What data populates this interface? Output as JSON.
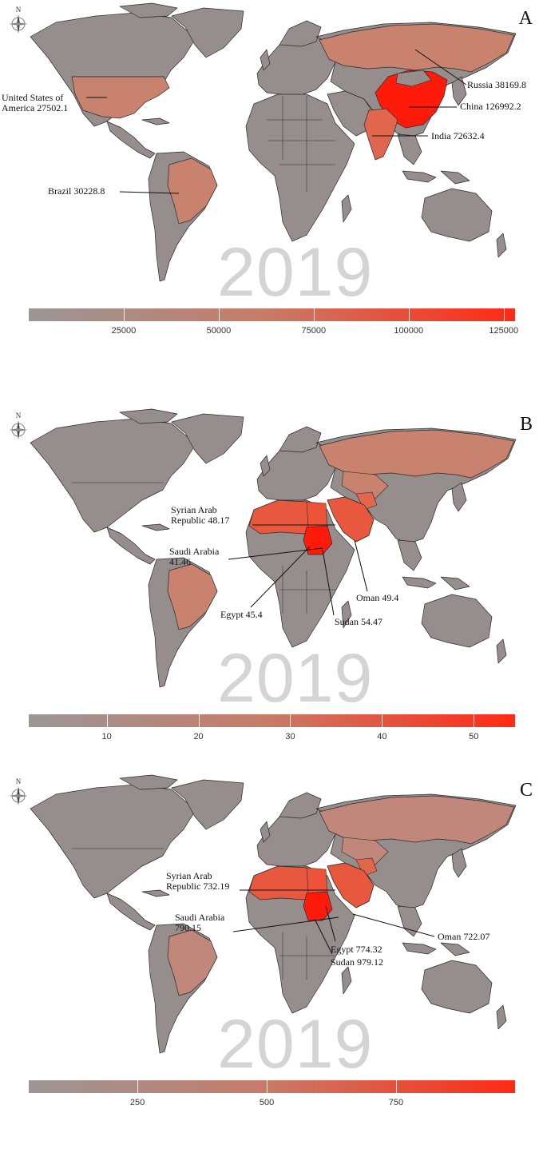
{
  "year_watermark": "2019",
  "panels": [
    {
      "letter": "A",
      "legend_ticks": [
        {
          "label": "25000",
          "value": 25000
        },
        {
          "label": "50000",
          "value": 50000
        },
        {
          "label": "75000",
          "value": 75000
        },
        {
          "label": "100000",
          "value": 100000
        },
        {
          "label": "125000",
          "value": 125000
        }
      ],
      "legend_range": [
        0,
        128000
      ],
      "annotations": [
        {
          "line1": "United States of",
          "line2": "America 27502.1",
          "value": 27502.1
        },
        {
          "line1": "Brazil 30228.8",
          "line2": "",
          "value": 30228.8
        },
        {
          "line1": "Russia 38169.8",
          "line2": "",
          "value": 38169.8
        },
        {
          "line1": "China 126992.2",
          "line2": "",
          "value": 126992.2
        },
        {
          "line1": "India 72632.4",
          "line2": "",
          "value": 72632.4
        }
      ]
    },
    {
      "letter": "B",
      "legend_ticks": [
        {
          "label": "10",
          "value": 10
        },
        {
          "label": "20",
          "value": 20
        },
        {
          "label": "30",
          "value": 30
        },
        {
          "label": "40",
          "value": 40
        },
        {
          "label": "50",
          "value": 50
        }
      ],
      "legend_range": [
        1.5,
        54.5
      ],
      "annotations": [
        {
          "line1": "Syrian Arab",
          "line2": "Republic 48.17",
          "value": 48.17
        },
        {
          "line1": "Saudi Arabia",
          "line2": "41.46",
          "value": 41.46
        },
        {
          "line1": "Egypt 45.4",
          "line2": "",
          "value": 45.4
        },
        {
          "line1": "Oman 49.4",
          "line2": "",
          "value": 49.4
        },
        {
          "line1": "Sudan 54.47",
          "line2": "",
          "value": 54.47
        }
      ]
    },
    {
      "letter": "C",
      "legend_ticks": [
        {
          "label": "250",
          "value": 250
        },
        {
          "label": "500",
          "value": 500
        },
        {
          "label": "750",
          "value": 750
        }
      ],
      "legend_range": [
        40,
        980
      ],
      "annotations": [
        {
          "line1": "Syrian Arab",
          "line2": "Republic 732.19",
          "value": 732.19
        },
        {
          "line1": "Saudi Arabia",
          "line2": "790.15",
          "value": 790.15
        },
        {
          "line1": "Oman 722.07",
          "line2": "",
          "value": 722.07
        },
        {
          "line1": "Egypt 774.32",
          "line2": "",
          "value": 774.32
        },
        {
          "line1": "Sudan 979.12",
          "line2": "",
          "value": 979.12
        }
      ]
    }
  ],
  "colors": {
    "low": "#9b9696",
    "mid": "#c97a66",
    "high": "#ff2a14",
    "border": "#222222"
  },
  "compass_label": "N",
  "icons": [
    "north-arrow-compass-icon"
  ]
}
